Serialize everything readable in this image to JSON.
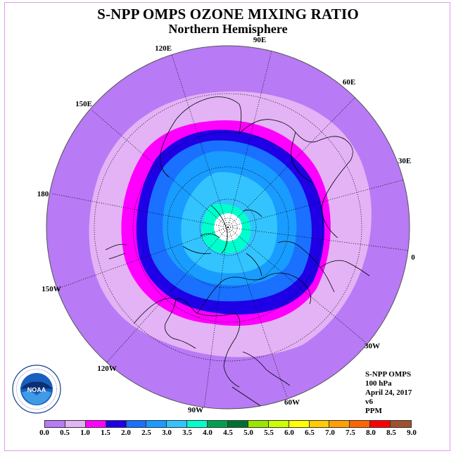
{
  "header": {
    "title": "S-NPP OMPS OZONE MIXING RATIO",
    "subtitle": "Northern Hemisphere"
  },
  "map": {
    "projection": "north polar stereographic",
    "longitude_labels": [
      "120E",
      "90E",
      "60E",
      "150E",
      "30E",
      "180",
      "0",
      "150W",
      "30W",
      "120W",
      "60W",
      "90W"
    ],
    "colors": {
      "outer_band": "#b87af5",
      "band_0_5": "#e3b3f5",
      "band_1_0": "#ff00ff",
      "band_1_5": "#1f00e6",
      "band_2_0": "#1a70ff",
      "band_2_5": "#199cff",
      "band_3_0": "#33c4ff",
      "band_3_5": "#00ffcc",
      "no_data": "#ffffff"
    }
  },
  "info": {
    "instrument": "S-NPP OMPS",
    "level": "100 hPa",
    "date": "April 24, 2017",
    "version": "v6",
    "units": "PPM"
  },
  "logo": {
    "name": "noaa-logo",
    "text": "NOAA",
    "ring_text": "NATIONAL OCEANIC AND ATMOSPHERIC ADMINISTRATION · U.S. DEPARTMENT OF COMMERCE"
  },
  "colorbar": {
    "ticks": [
      "0.0",
      "0.5",
      "1.0",
      "1.5",
      "2.0",
      "2.5",
      "3.0",
      "3.5",
      "4.0",
      "4.5",
      "5.0",
      "5.5",
      "6.0",
      "6.5",
      "7.0",
      "7.5",
      "8.0",
      "8.5",
      "9.0"
    ],
    "colors": [
      "#b87af5",
      "#e3b3f5",
      "#ff00ff",
      "#1f00e6",
      "#1a70ff",
      "#199cff",
      "#33c4ff",
      "#00ffcc",
      "#00a052",
      "#007030",
      "#9be600",
      "#ccff00",
      "#ffff00",
      "#ffcc00",
      "#ffa000",
      "#ff6600",
      "#ff0000",
      "#a0522d"
    ]
  }
}
